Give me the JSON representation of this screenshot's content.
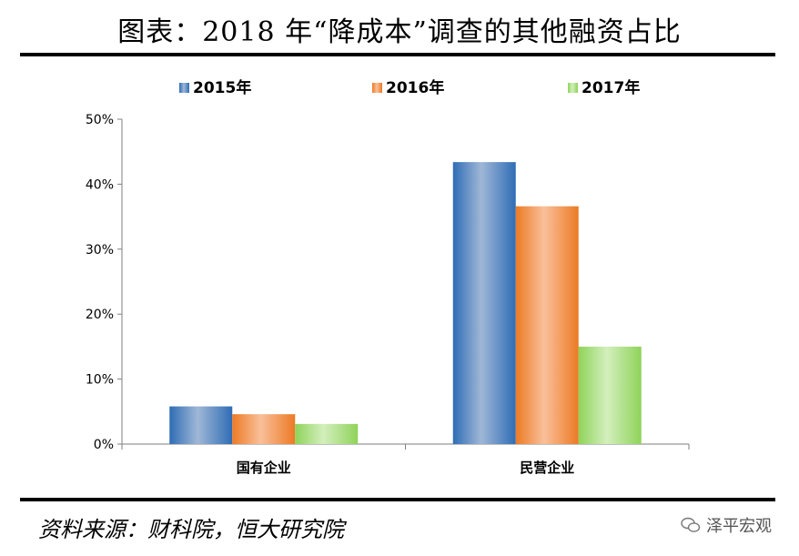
{
  "header": {
    "title": "图表：2018 年“降成本”调查的其他融资占比"
  },
  "footer": {
    "source": "资料来源：财科院，恒大研究院",
    "watermark": "泽平宏观"
  },
  "chart_data": {
    "type": "bar",
    "title": "",
    "categories": [
      "国有企业",
      "民营企业"
    ],
    "series": [
      {
        "name": "2015年",
        "values": [
          5.8,
          43.4
        ],
        "color": "#4f81bd"
      },
      {
        "name": "2016年",
        "values": [
          4.6,
          36.6
        ],
        "color": "#f79646"
      },
      {
        "name": "2017年",
        "values": [
          3.1,
          15.0
        ],
        "color": "#9bd46a"
      }
    ],
    "ylim": [
      0,
      50
    ],
    "yticks": [
      "0%",
      "10%",
      "20%",
      "30%",
      "40%",
      "50%"
    ],
    "xlabel": "",
    "ylabel": "",
    "legend": "top",
    "grid": false
  }
}
